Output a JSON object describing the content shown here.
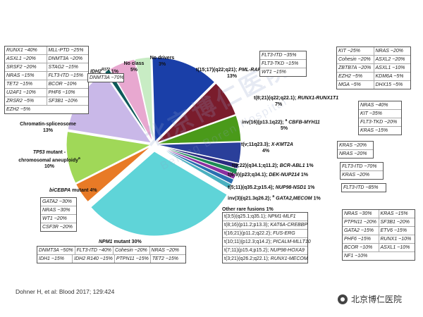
{
  "chart_data": {
    "type": "pie",
    "unit": "%",
    "slices": [
      {
        "label": "t(15;17)(q22;q21); PML-RARA",
        "value": 13,
        "color": "#1a3fa8"
      },
      {
        "label": "t(8;21)(q22;q22.1); RUNX1-RUNX1T1",
        "value": 7,
        "color": "#7a1c2c"
      },
      {
        "label": "inv(16)(p13.1q22); CBFB-MYH11",
        "value": 5,
        "color": "#4a9a1a"
      },
      {
        "label": "t(v;11q23.3); X-KMT2A",
        "value": 4,
        "color": "#2a3f9a"
      },
      {
        "label": "t(9;22)(q34.1;q11.2); BCR-ABL1",
        "value": 1,
        "color": "#2b2b80"
      },
      {
        "label": "t(6;9)(p23;q34.1); DEK-NUP214",
        "value": 1,
        "color": "#1d8a55"
      },
      {
        "label": "t(5;11)(q35.2;p15.4); NUP98-NSD1",
        "value": 1,
        "color": "#8c2fa0"
      },
      {
        "label": "inv(3)(q21.3q26.2); GATA2,MECOM",
        "value": 1,
        "color": "#2a6fb0"
      },
      {
        "label": "Other rare fusions",
        "value": 1,
        "color": "#4ab0c0"
      },
      {
        "label": "NPM1 mutant",
        "value": 30,
        "color": "#5fd4d8"
      },
      {
        "label": "biCEBPA mutant",
        "value": 4,
        "color": "#e87a26"
      },
      {
        "label": "TP53 mutant - chromosomal aneuploidy",
        "value": 10,
        "color": "#a0d858"
      },
      {
        "label": "Chromatin-spliceosome",
        "value": 13,
        "color": "#c9b8e8"
      },
      {
        "label": "IDH2 R172",
        "value": 1,
        "color": "#0e5a5a"
      },
      {
        "label": "No class",
        "value": 5,
        "color": "#e8a8d0"
      },
      {
        "label": "No drivers",
        "value": 3,
        "color": "#c8ecc4"
      }
    ]
  },
  "labels": {
    "pml": {
      "t": "t(15;17)(q22;q21); ",
      "g": "PML-RARA",
      "p": "13%"
    },
    "runx1": {
      "t": "t(8;21)(q22;q22.1); ",
      "g": "RUNX1-RUNX1T1",
      "p": "7%"
    },
    "cbfb": {
      "t": "inv(16)(p13.1q22); ",
      "sup": "a",
      "g": "CBFB-MYH11",
      "p": "5%"
    },
    "kmt2a": {
      "t": "t(v;11q23.3); ",
      "g": "X-KMT2A",
      "p": "4%"
    },
    "bcr": {
      "t": "t(9;22)(q34.1;q11.2); ",
      "g": "BCR-ABL1",
      "p": "1%"
    },
    "dek": {
      "t": "t(6;9)(p23;q34.1); ",
      "g": "DEK-NUP214",
      "p": "1%"
    },
    "nup98": {
      "t": "t(5;11)(q35.2;p15.4); ",
      "g": "NUP98-NSD1",
      "p": "1%"
    },
    "gata2": {
      "t": "inv(3)(q21.3q26.2); ",
      "sup": "a",
      "g": "GATA2,MECOM",
      "p": "1%"
    },
    "rare": {
      "t": "Other rare fusions 1%"
    },
    "npm1": {
      "g": "NPM1",
      "t": " mutant 30%"
    },
    "cebpa": {
      "g": "biCEBPA",
      "t": " mutant 4%"
    },
    "tp53": {
      "g": "TP53",
      "t1": " mutant -",
      "t2": "chromosomal aneuploidy",
      "sup": "a",
      "p": "10%"
    },
    "chrom": {
      "t": "Chromatin-spliceosome",
      "p": "13%"
    },
    "idh2": {
      "g": "IDH2",
      "sup": "R172",
      "p": "1%"
    },
    "noclass": {
      "t": "No class",
      "p": "5%"
    },
    "nodrivers": {
      "t": "No drivers",
      "p": "3%"
    }
  },
  "rare_fusions": [
    {
      "t": "t(3;5)(q25.1;q35.1); ",
      "g": "NPM1-MLF1"
    },
    {
      "t": "t(8;16)(p11.2;p13.3); ",
      "g": "KAT6A-CREBBP"
    },
    {
      "t": "t(16;21)(p11.2;q22.2); ",
      "g": "FUS-ERG"
    },
    {
      "t": "t(10;11)(p12.3;q14.2); ",
      "g": "PICALM-MLLT10"
    },
    {
      "t": "t(7;11)(p15.4;p15.2); ",
      "g": "NUP98-HOXA9"
    },
    {
      "t": "t(3;21)(q26.2;q22.1); ",
      "g": "RUNX1-MECOM"
    }
  ],
  "boxes": {
    "chromatin": [
      [
        "RUNX1 ~40%",
        "MLL-PTD ~25%"
      ],
      [
        "ASXL1 ~20%",
        "DNMT3A ~20%"
      ],
      [
        "SRSF2 ~20%",
        "STAG2 ~15%"
      ],
      [
        "NRAS ~15%",
        "FLT3-ITD ~15%"
      ],
      [
        "TET2 ~15%",
        "BCOR ~10%"
      ],
      [
        "U2AF1 ~10%",
        "PHF6 ~10%"
      ],
      [
        "ZRSR2 ~5%",
        "SF3B1 ~10%"
      ],
      [
        "EZH2 ~5%"
      ]
    ],
    "idh2": [
      [
        "DNMT3A ~70%"
      ]
    ],
    "pml": [
      [
        "FLT3-ITD ~35%"
      ],
      [
        "FLT3-TKD ~15%"
      ],
      [
        "WT1 ~15%"
      ]
    ],
    "runx1": [
      [
        "KIT ~25%",
        "NRAS ~20%"
      ],
      [
        "Cohesin ~20%",
        "ASXL2 ~20%"
      ],
      [
        "ZBTB7A ~20%",
        "ASXL1 ~10%"
      ],
      [
        "EZH2 ~5%",
        "KDM6A ~5%"
      ],
      [
        "MGA ~5%",
        "DHX15 ~5%"
      ]
    ],
    "cbfb": [
      [
        "NRAS ~40%"
      ],
      [
        "KIT ~35%"
      ],
      [
        "FLT3-TKD ~20%"
      ],
      [
        "KRAS ~15%"
      ]
    ],
    "kmt2a": [
      [
        "KRAS ~20%"
      ],
      [
        "NRAS ~20%"
      ]
    ],
    "bcr": [
      [
        "FLT3-ITD ~70%"
      ],
      [
        "KRAS ~20%"
      ]
    ],
    "nup98": [
      [
        "FLT3-ITD ~85%"
      ]
    ],
    "gata2": [
      [
        "NRAS ~30%",
        "KRAS ~15%"
      ],
      [
        "PTPN11 ~20%",
        "SF3B1 ~20%"
      ],
      [
        "GATA2 ~15%",
        "ETV6 ~15%"
      ],
      [
        "PHF6 ~15%",
        "RUNX1 ~10%"
      ],
      [
        "BCOR ~10%",
        "ASXL1 ~10%"
      ],
      [
        "NF1 ~10%"
      ]
    ],
    "cebpa": [
      [
        "GATA2 ~30%"
      ],
      [
        "NRAS ~30%"
      ],
      [
        "WT1 ~20%"
      ],
      [
        "CSF3R ~20%"
      ]
    ],
    "npm1": [
      [
        "DNMT3A ~50%",
        "FLT3-ITD ~40%",
        "Cohesin ~20%",
        "NRAS ~20%"
      ],
      [
        "IDH1 ~15%",
        "IDH2 R140 ~15%",
        "PTPN11 ~15%",
        "TET2 ~15%"
      ]
    ]
  },
  "citation": "Dohner H, et al: Blood 2017; 129:424",
  "watermark": {
    "brand": "北京博仁医院",
    "big": "北京博仁医院",
    "sub": "Beijing Boren Hospital"
  }
}
